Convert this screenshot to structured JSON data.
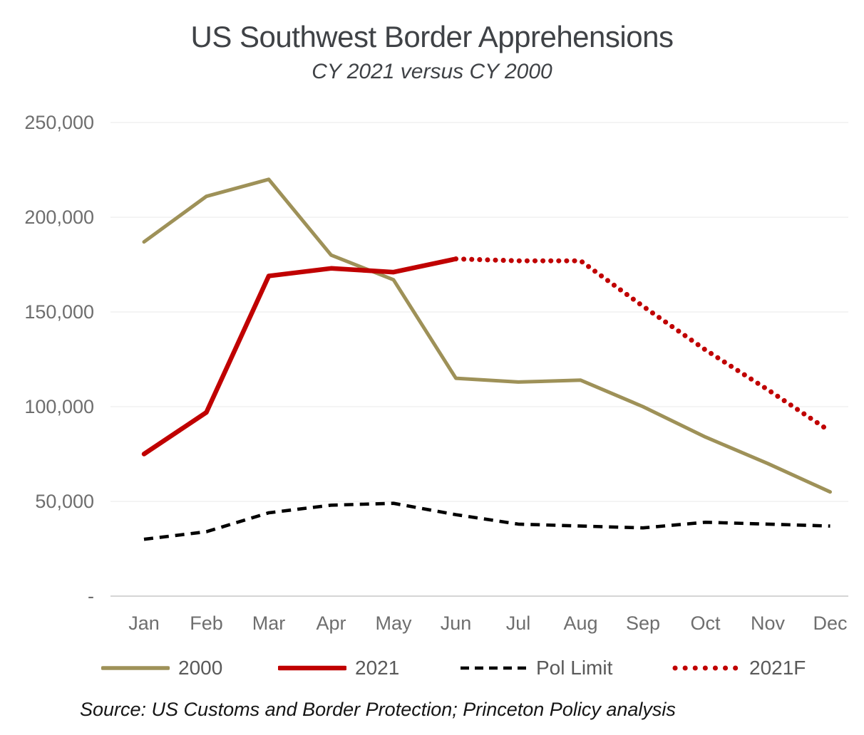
{
  "title": "US Southwest Border Apprehensions",
  "subtitle": "CY 2021 versus CY 2000",
  "source": "Source: US Customs and Border Protection; Princeton Policy analysis",
  "chart_data": {
    "type": "line",
    "categories": [
      "Jan",
      "Feb",
      "Mar",
      "Apr",
      "May",
      "Jun",
      "Jul",
      "Aug",
      "Sep",
      "Oct",
      "Nov",
      "Dec"
    ],
    "xlabel": "",
    "ylabel": "",
    "ylim": [
      0,
      250000
    ],
    "grid": true,
    "legend_position": "bottom",
    "y_axis": {
      "ticks": [
        {
          "label": "250,000",
          "value": 250000
        },
        {
          "label": "200,000",
          "value": 200000
        },
        {
          "label": "150,000",
          "value": 150000
        },
        {
          "label": "100,000",
          "value": 100000
        },
        {
          "label": "50,000",
          "value": 50000
        },
        {
          "label": "-",
          "value": 0
        }
      ]
    },
    "colors": {
      "olive": "#9e9158",
      "red": "#c00000",
      "black": "#000000",
      "gridline": "#ededed",
      "axis_line": "#c7c7c7"
    },
    "series": [
      {
        "name": "2000",
        "color": "#9e9158",
        "style": "solid",
        "values": [
          187000,
          211000,
          220000,
          180000,
          167000,
          115000,
          113000,
          114000,
          100000,
          84000,
          70000,
          55000
        ]
      },
      {
        "name": "2021",
        "color": "#c00000",
        "style": "solid",
        "values": [
          75000,
          97000,
          169000,
          173000,
          171000,
          178000,
          null,
          null,
          null,
          null,
          null,
          null
        ]
      },
      {
        "name": "Pol Limit",
        "color": "#000000",
        "style": "dashed",
        "values": [
          30000,
          34000,
          44000,
          48000,
          49000,
          43000,
          38000,
          37000,
          36000,
          39000,
          38000,
          37000
        ]
      },
      {
        "name": "2021F",
        "color": "#c00000",
        "style": "dotted",
        "values": [
          null,
          null,
          null,
          null,
          null,
          178000,
          177000,
          177000,
          153000,
          130000,
          109000,
          87000
        ]
      }
    ]
  }
}
